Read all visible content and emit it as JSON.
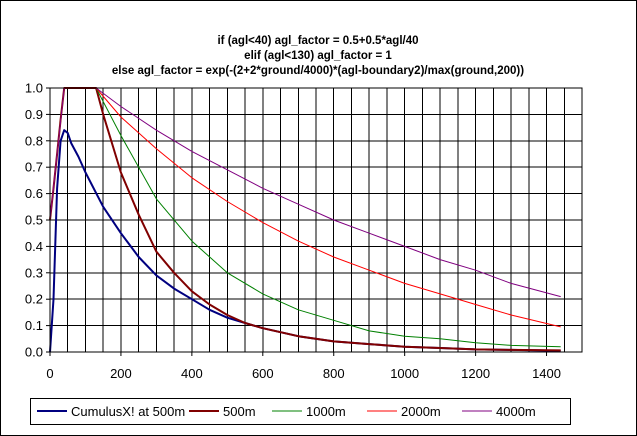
{
  "chart_data": {
    "type": "line",
    "title_lines": [
      "if (agl<40) agl_factor = 0.5+0.5*agl/40",
      "elif (agl<130) agl_factor = 1",
      "else agl_factor = exp(-(2+2*ground/4000)*(agl-boundary2)/max(ground,200))"
    ],
    "xlim": [
      0,
      1500
    ],
    "ylim": [
      0,
      1.0
    ],
    "x_ticks": [
      0,
      200,
      400,
      600,
      800,
      1000,
      1200,
      1400
    ],
    "x_tick_labels": [
      "0",
      "200",
      "400",
      "600",
      "800",
      "1000",
      "1200",
      "1400"
    ],
    "y_ticks": [
      0,
      0.1,
      0.2,
      0.3,
      0.4,
      0.5,
      0.6,
      0.7,
      0.8,
      0.9,
      1.0
    ],
    "y_tick_labels": [
      "0.0",
      "0.1",
      "0.2",
      "0.3",
      "0.4",
      "0.5",
      "0.6",
      "0.7",
      "0.8",
      "0.9",
      "1.0"
    ],
    "grid": true,
    "legend_position": "bottom",
    "series": [
      {
        "name": "CumulusX! at 500m",
        "color": "#000080",
        "width": 2,
        "points": [
          [
            0,
            0.0
          ],
          [
            10,
            0.2
          ],
          [
            20,
            0.62
          ],
          [
            30,
            0.8
          ],
          [
            40,
            0.84
          ],
          [
            50,
            0.83
          ],
          [
            60,
            0.79
          ],
          [
            80,
            0.74
          ],
          [
            100,
            0.68
          ],
          [
            150,
            0.55
          ],
          [
            200,
            0.45
          ],
          [
            250,
            0.36
          ],
          [
            300,
            0.29
          ],
          [
            350,
            0.24
          ],
          [
            400,
            0.2
          ],
          [
            450,
            0.16
          ],
          [
            500,
            0.13
          ],
          [
            550,
            0.11
          ],
          [
            600,
            0.09
          ],
          [
            700,
            0.06
          ],
          [
            800,
            0.04
          ],
          [
            900,
            0.03
          ],
          [
            1000,
            0.02
          ],
          [
            1100,
            0.015
          ],
          [
            1200,
            0.01
          ],
          [
            1300,
            0.008
          ],
          [
            1440,
            0.005
          ]
        ]
      },
      {
        "name": "500m",
        "color": "#800000",
        "width": 2,
        "points": [
          [
            0,
            0.5
          ],
          [
            10,
            0.62
          ],
          [
            20,
            0.75
          ],
          [
            30,
            0.88
          ],
          [
            40,
            1.0
          ],
          [
            130,
            1.0
          ],
          [
            150,
            0.9
          ],
          [
            200,
            0.68
          ],
          [
            250,
            0.52
          ],
          [
            300,
            0.38
          ],
          [
            350,
            0.3
          ],
          [
            400,
            0.23
          ],
          [
            450,
            0.18
          ],
          [
            500,
            0.14
          ],
          [
            550,
            0.11
          ],
          [
            600,
            0.09
          ],
          [
            700,
            0.06
          ],
          [
            800,
            0.04
          ],
          [
            900,
            0.03
          ],
          [
            1000,
            0.02
          ],
          [
            1100,
            0.015
          ],
          [
            1200,
            0.01
          ],
          [
            1300,
            0.008
          ],
          [
            1440,
            0.006
          ]
        ]
      },
      {
        "name": "1000m",
        "color": "#008000",
        "width": 1,
        "points": [
          [
            0,
            0.5
          ],
          [
            40,
            1.0
          ],
          [
            130,
            1.0
          ],
          [
            200,
            0.82
          ],
          [
            300,
            0.58
          ],
          [
            400,
            0.42
          ],
          [
            500,
            0.3
          ],
          [
            600,
            0.22
          ],
          [
            700,
            0.16
          ],
          [
            800,
            0.12
          ],
          [
            900,
            0.08
          ],
          [
            1000,
            0.06
          ],
          [
            1100,
            0.05
          ],
          [
            1200,
            0.035
          ],
          [
            1300,
            0.025
          ],
          [
            1440,
            0.02
          ]
        ]
      },
      {
        "name": "2000m",
        "color": "#ff0000",
        "width": 1,
        "points": [
          [
            0,
            0.5
          ],
          [
            40,
            1.0
          ],
          [
            130,
            1.0
          ],
          [
            200,
            0.89
          ],
          [
            300,
            0.77
          ],
          [
            400,
            0.66
          ],
          [
            500,
            0.57
          ],
          [
            600,
            0.49
          ],
          [
            700,
            0.42
          ],
          [
            800,
            0.36
          ],
          [
            900,
            0.31
          ],
          [
            1000,
            0.26
          ],
          [
            1100,
            0.22
          ],
          [
            1200,
            0.18
          ],
          [
            1300,
            0.14
          ],
          [
            1440,
            0.095
          ]
        ]
      },
      {
        "name": "4000m",
        "color": "#800080",
        "width": 1,
        "points": [
          [
            0,
            0.5
          ],
          [
            40,
            1.0
          ],
          [
            130,
            1.0
          ],
          [
            200,
            0.93
          ],
          [
            300,
            0.84
          ],
          [
            400,
            0.76
          ],
          [
            500,
            0.69
          ],
          [
            600,
            0.62
          ],
          [
            700,
            0.56
          ],
          [
            800,
            0.5
          ],
          [
            900,
            0.45
          ],
          [
            1000,
            0.4
          ],
          [
            1100,
            0.35
          ],
          [
            1200,
            0.31
          ],
          [
            1300,
            0.26
          ],
          [
            1440,
            0.21
          ]
        ]
      }
    ]
  }
}
